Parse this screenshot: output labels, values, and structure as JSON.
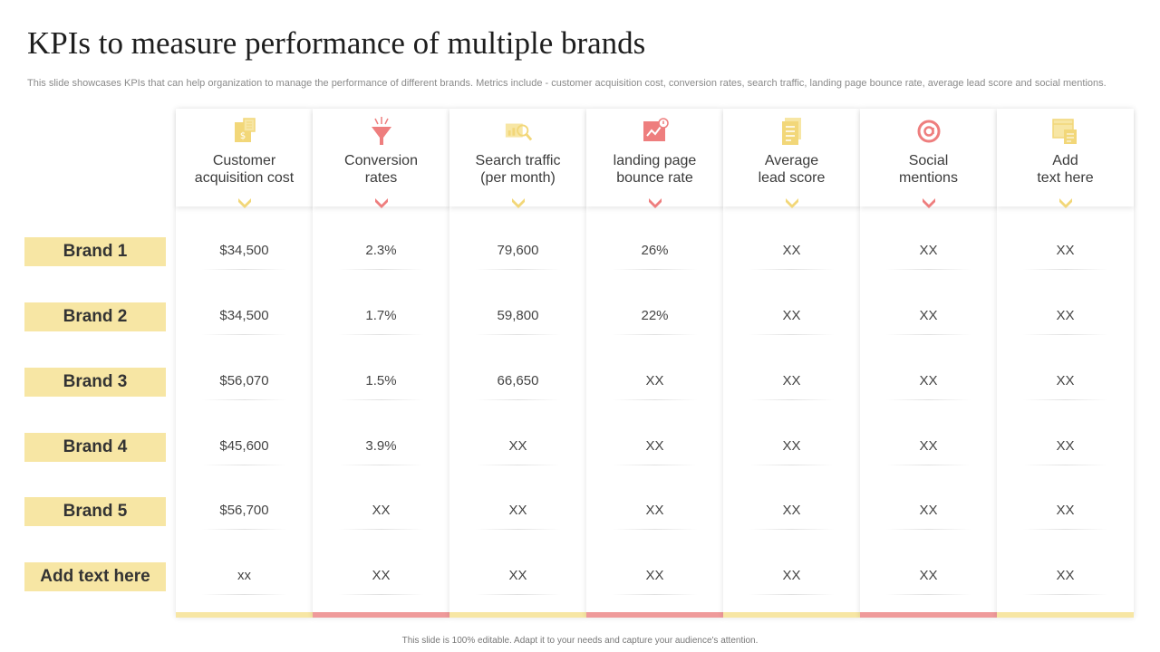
{
  "title": "KPIs to measure performance of multiple brands",
  "subtitle": "This slide showcases KPIs that can help organization to manage the performance of different brands. Metrics include - customer acquisition cost, conversion rates, search traffic, landing page bounce rate, average lead score and social mentions.",
  "footer": "This slide is 100% editable. Adapt it to your needs and capture your audience's attention.",
  "colors": {
    "yellow": "#f7e6a4",
    "pink": "#ef9a9a",
    "icon_yellow": "#f2d779",
    "icon_pink": "#ee7e7e"
  },
  "columns": [
    {
      "line1": "Customer",
      "line2": "acquisition cost",
      "icon": "money-document-icon",
      "accent": "yellow"
    },
    {
      "line1": "Conversion",
      "line2": "rates",
      "icon": "funnel-icon",
      "accent": "pink"
    },
    {
      "line1": "Search traffic",
      "line2": "(per month)",
      "icon": "search-graph-icon",
      "accent": "yellow"
    },
    {
      "line1": "landing page",
      "line2": "bounce rate",
      "icon": "chart-warning-icon",
      "accent": "pink"
    },
    {
      "line1": "Average",
      "line2": "lead score",
      "icon": "score-sheet-icon",
      "accent": "yellow"
    },
    {
      "line1": "Social",
      "line2": "mentions",
      "icon": "at-sign-icon",
      "accent": "pink"
    },
    {
      "line1": "Add",
      "line2": "text here",
      "icon": "browser-document-icon",
      "accent": "yellow"
    }
  ],
  "rows": [
    {
      "label": "Brand 1",
      "values": [
        "$34,500",
        "2.3%",
        "79,600",
        "26%",
        "XX",
        "XX",
        "XX"
      ]
    },
    {
      "label": "Brand 2",
      "values": [
        "$34,500",
        "1.7%",
        "59,800",
        "22%",
        "XX",
        "XX",
        "XX"
      ]
    },
    {
      "label": "Brand 3",
      "values": [
        "$56,070",
        "1.5%",
        "66,650",
        "XX",
        "XX",
        "XX",
        "XX"
      ]
    },
    {
      "label": "Brand 4",
      "values": [
        "$45,600",
        "3.9%",
        "XX",
        "XX",
        "XX",
        "XX",
        "XX"
      ]
    },
    {
      "label": "Brand 5",
      "values": [
        "$56,700",
        "XX",
        "XX",
        "XX",
        "XX",
        "XX",
        "XX"
      ]
    },
    {
      "label": "Add text here",
      "values": [
        "xx",
        "XX",
        "XX",
        "XX",
        "XX",
        "XX",
        "XX"
      ]
    }
  ]
}
